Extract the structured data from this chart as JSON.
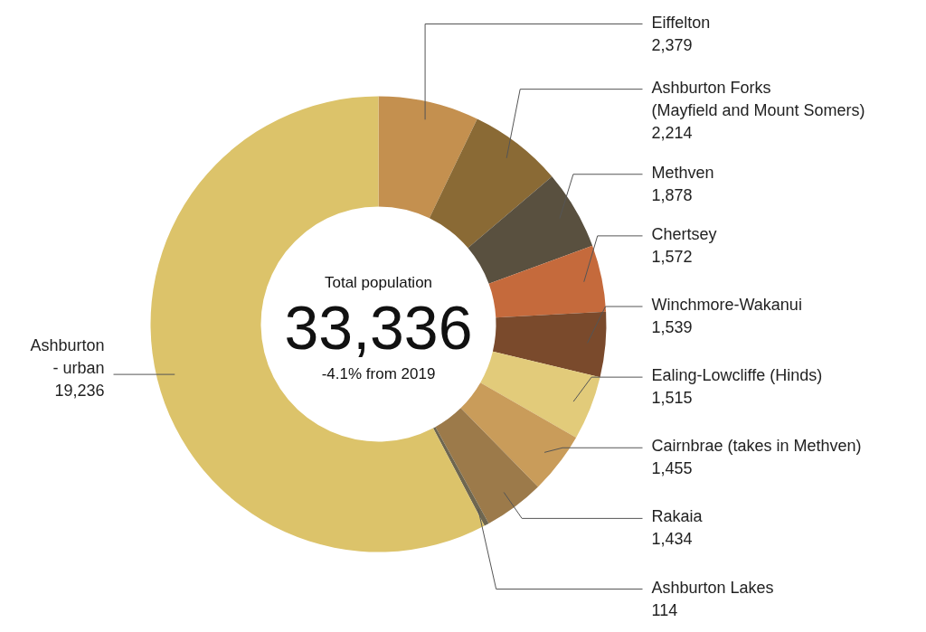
{
  "chart_data": {
    "type": "donut",
    "categories": [
      "Eiffelton",
      "Ashburton Forks\n(Mayfield and Mount Somers)",
      "Methven",
      "Chertsey",
      "Winchmore-Wakanui",
      "Ealing-Lowcliffe (Hinds)",
      "Cairnbrae (takes in Methven)",
      "Rakaia",
      "Ashburton Lakes",
      "Ashburton\n- urban"
    ],
    "values": [
      2379,
      2214,
      1878,
      1572,
      1539,
      1515,
      1455,
      1434,
      114,
      19236
    ],
    "colors": [
      "#c4904f",
      "#8a6a35",
      "#59503f",
      "#c56a3c",
      "#7a4a2c",
      "#e2cb7a",
      "#c99c5a",
      "#9c7a4a",
      "#6e6650",
      "#dcc36a"
    ],
    "value_labels": [
      "2,379",
      "2,214",
      "1,878",
      "1,572",
      "1,539",
      "1,515",
      "1,455",
      "1,434",
      "114",
      "19,236"
    ],
    "annotations": [
      "Total population",
      "33,336",
      "-4.1% from 2019"
    ]
  }
}
